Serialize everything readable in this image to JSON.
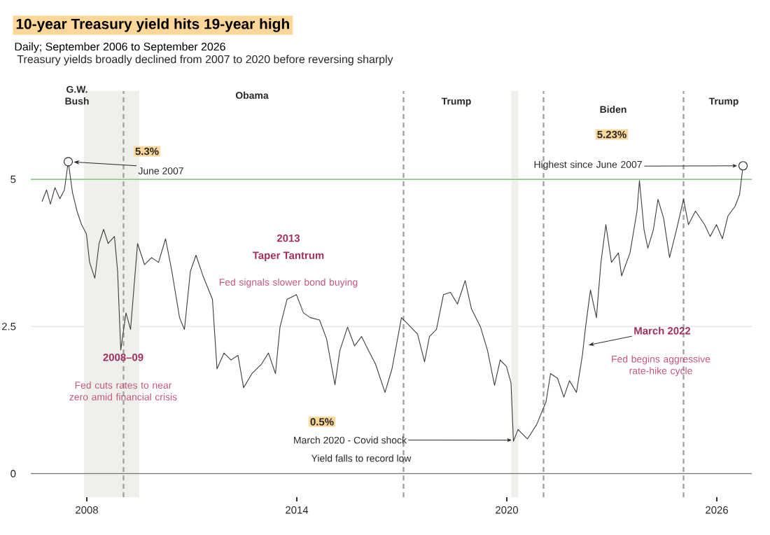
{
  "chart_data": {
    "type": "line",
    "title": "10-year Treasury yield hits 19-year high",
    "subtitle": "Daily; September 2006 to September 2026",
    "x": [
      2006.72,
      2006.85,
      2006.96,
      2007.09,
      2007.23,
      2007.36,
      2007.47,
      2007.59,
      2007.72,
      2007.85,
      2007.99,
      2008.08,
      2008.23,
      2008.35,
      2008.48,
      2008.61,
      2008.79,
      2008.88,
      2008.97,
      2009.12,
      2009.25,
      2009.45,
      2009.65,
      2009.85,
      2010.05,
      2010.25,
      2010.43,
      2010.65,
      2010.79,
      2010.96,
      2011.12,
      2011.32,
      2011.59,
      2011.72,
      2011.92,
      2012.12,
      2012.32,
      2012.48,
      2012.72,
      2012.99,
      2013.19,
      2013.39,
      2013.52,
      2013.72,
      2013.99,
      2014.19,
      2014.39,
      2014.65,
      2014.85,
      2015.09,
      2015.23,
      2015.45,
      2015.65,
      2015.85,
      2016.05,
      2016.25,
      2016.52,
      2016.72,
      2016.99,
      2017.19,
      2017.45,
      2017.65,
      2017.79,
      2017.99,
      2018.19,
      2018.39,
      2018.59,
      2018.81,
      2018.99,
      2019.25,
      2019.45,
      2019.65,
      2019.81,
      2019.99,
      2020.12,
      2020.19,
      2020.32,
      2020.59,
      2020.85,
      2021.12,
      2021.25,
      2021.45,
      2021.63,
      2021.79,
      2021.99,
      2022.16,
      2022.25,
      2022.39,
      2022.56,
      2022.69,
      2022.83,
      2022.99,
      2023.19,
      2023.28,
      2023.52,
      2023.72,
      2023.79,
      2023.92,
      2024.03,
      2024.19,
      2024.32,
      2024.48,
      2024.65,
      2024.85,
      2025.05,
      2025.19,
      2025.39,
      2025.65,
      2025.81,
      2025.99,
      2026.16,
      2026.32,
      2026.52,
      2026.65,
      2026.75
    ],
    "series": [
      {
        "color": "#3c3c3c",
        "line_style": "solid",
        "values": [
          4.62,
          4.82,
          4.58,
          4.86,
          4.67,
          4.82,
          5.3,
          4.78,
          4.46,
          4.23,
          4.07,
          3.59,
          3.32,
          3.91,
          4.15,
          3.91,
          4.03,
          3.44,
          2.1,
          2.73,
          2.45,
          3.91,
          3.55,
          3.67,
          3.59,
          3.99,
          3.44,
          2.65,
          2.45,
          3.44,
          3.71,
          3.36,
          2.96,
          1.78,
          2.05,
          1.93,
          2.01,
          1.46,
          1.7,
          1.86,
          2.05,
          1.7,
          2.49,
          2.96,
          3.04,
          2.73,
          2.65,
          2.61,
          2.29,
          1.51,
          2.09,
          2.49,
          2.17,
          2.33,
          2.09,
          1.86,
          1.38,
          1.78,
          2.65,
          2.53,
          2.37,
          1.9,
          2.33,
          2.45,
          3.04,
          3.08,
          2.88,
          3.28,
          2.8,
          2.49,
          2.09,
          1.5,
          1.93,
          1.82,
          1.54,
          0.55,
          0.75,
          0.59,
          0.83,
          1.22,
          1.7,
          1.62,
          1.3,
          1.58,
          1.38,
          2.01,
          2.49,
          3.12,
          2.65,
          3.59,
          4.23,
          3.59,
          3.75,
          3.36,
          3.75,
          4.46,
          4.98,
          4.15,
          3.83,
          4.15,
          4.66,
          4.34,
          3.67,
          4.15,
          4.66,
          4.23,
          4.46,
          4.23,
          4.03,
          4.23,
          3.99,
          4.38,
          4.54,
          4.74,
          5.23
        ]
      }
    ],
    "xlim": [
      2006.4,
      2027.0
    ],
    "ylim": [
      -0.4,
      6.5
    ],
    "xticks": [
      2008,
      2014,
      2020,
      2026
    ],
    "yticks": [
      0,
      2.5,
      5
    ],
    "grid": "y",
    "marker": "none",
    "bands": [
      {
        "axis": "x",
        "from": 2007.92,
        "to": 2009.5,
        "color": "#eef0ec"
      },
      {
        "axis": "x",
        "from": 2020.13,
        "to": 2020.33,
        "color": "#eef0ec"
      }
    ],
    "ref_lines": [
      {
        "axis": "y",
        "value": 0,
        "color": "#777777"
      },
      {
        "axis": "y",
        "value": 5,
        "color": "#6abf69"
      },
      {
        "axis": "x",
        "value": 2009.05,
        "color": "#a8a29e",
        "line_style": "dashed"
      },
      {
        "axis": "x",
        "value": 2017.05,
        "color": "#a8a29e",
        "line_style": "dashed"
      },
      {
        "axis": "x",
        "value": 2021.05,
        "color": "#a8a29e",
        "line_style": "dashed"
      },
      {
        "axis": "x",
        "value": 2025.05,
        "color": "#a8a29e",
        "line_style": "dashed"
      }
    ],
    "annotations": [
      "Treasury yields broadly declined from 2007 to 2020 before reversing sharply",
      "G.W. Bush",
      "Obama",
      "Trump",
      "Biden",
      "Trump",
      "5.3%",
      {
        "text": "June 2007",
        "x": 2007.47,
        "y": 5.3
      },
      "5.23%",
      {
        "text": "Highest since June 2007",
        "x": 2026.75,
        "y": 5.23
      },
      "2008–09",
      "Fed cuts rates to near zero amid financial crisis",
      "2013",
      "Taper Tantrum",
      "Fed signals slower bond buying",
      "0.5%",
      {
        "text": "March 2020 - Covid shock",
        "x": 2020.19,
        "y": 0.57
      },
      "Yield falls to record low",
      {
        "text": "March 2022",
        "x": 2022.3,
        "y": 2.18
      },
      "Fed begins aggressive rate-hike cycle"
    ]
  }
}
